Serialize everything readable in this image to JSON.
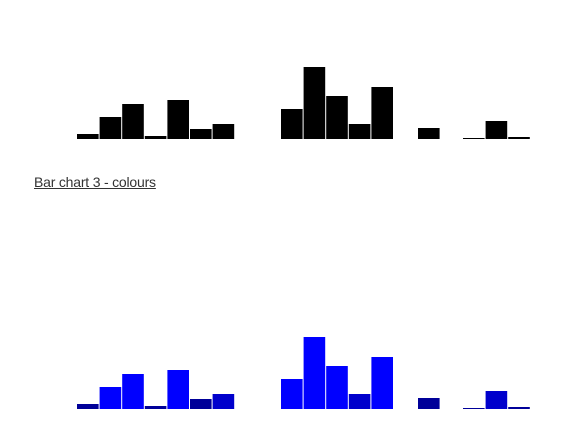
{
  "heading": "Bar chart 3 - colours",
  "chart_data": [
    {
      "type": "bar",
      "title": "",
      "xlabel": "",
      "ylabel": "",
      "ylim": [
        0,
        72
      ],
      "groups": [
        {
          "values": [
            5,
            22,
            35,
            3,
            39,
            10,
            15
          ]
        },
        {
          "values": [
            30,
            72,
            43,
            15,
            52
          ]
        },
        {
          "values": [
            11
          ]
        },
        {
          "values": [
            1,
            18,
            2
          ]
        }
      ],
      "colors": {
        "bar": "#000000"
      }
    },
    {
      "type": "bar",
      "title": "",
      "xlabel": "",
      "ylabel": "",
      "ylim": [
        0,
        72
      ],
      "groups": [
        {
          "values": [
            5,
            22,
            35,
            3,
            39,
            10,
            15
          ]
        },
        {
          "values": [
            30,
            72,
            43,
            15,
            52
          ]
        },
        {
          "values": [
            11
          ]
        },
        {
          "values": [
            1,
            18,
            2
          ]
        }
      ],
      "colors": {
        "high": "#0000ff",
        "mid": "#0000cc",
        "low": "#000099"
      }
    }
  ]
}
